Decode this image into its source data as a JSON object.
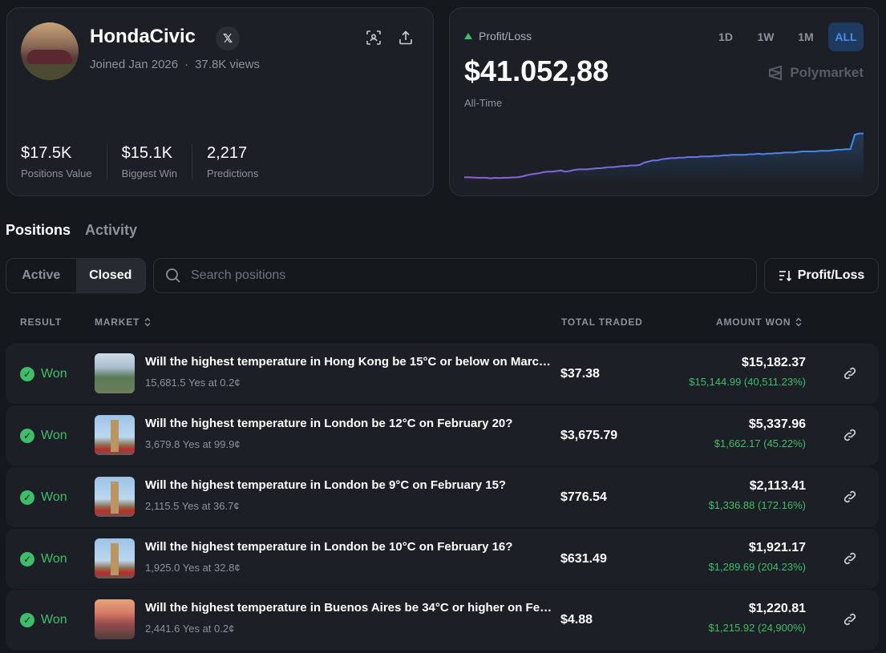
{
  "profile": {
    "username": "HondaCivic",
    "social_icon": "x-logo-icon",
    "joined": "Joined Jan 2026",
    "dot": "·",
    "views": "37.8K views",
    "stats": [
      {
        "value": "$17.5K",
        "label": "Positions Value"
      },
      {
        "value": "$15.1K",
        "label": "Biggest Win"
      },
      {
        "value": "2,217",
        "label": "Predictions"
      }
    ]
  },
  "pnl": {
    "label": "Profit/Loss",
    "value": "$41.052,88",
    "period": "All-Time",
    "ranges": [
      "1D",
      "1W",
      "1M",
      "ALL"
    ],
    "active_range": "ALL",
    "brand": "Polymarket",
    "series": [
      0.04,
      0.04,
      0.035,
      0.03,
      0.03,
      0.03,
      0.02,
      0.03,
      0.025,
      0.03,
      0.03,
      0.035,
      0.04,
      0.05,
      0.07,
      0.09,
      0.1,
      0.11,
      0.13,
      0.14,
      0.14,
      0.15,
      0.16,
      0.14,
      0.15,
      0.17,
      0.18,
      0.18,
      0.18,
      0.19,
      0.2,
      0.2,
      0.21,
      0.22,
      0.22,
      0.23,
      0.24,
      0.24,
      0.25,
      0.25,
      0.26,
      0.3,
      0.32,
      0.34,
      0.34,
      0.36,
      0.37,
      0.38,
      0.38,
      0.39,
      0.39,
      0.4,
      0.4,
      0.4,
      0.41,
      0.41,
      0.41,
      0.42,
      0.42,
      0.43,
      0.43,
      0.44,
      0.44,
      0.44,
      0.44,
      0.45,
      0.45,
      0.46,
      0.45,
      0.46,
      0.46,
      0.47,
      0.47,
      0.48,
      0.48,
      0.48,
      0.49,
      0.5,
      0.5,
      0.5,
      0.5,
      0.51,
      0.51,
      0.51,
      0.52,
      0.53,
      0.53,
      0.54,
      0.54,
      0.8,
      0.82,
      0.82
    ],
    "colors": {
      "start": "#9b59d6",
      "end": "#3d8cf0"
    }
  },
  "tabs": [
    "Positions",
    "Activity"
  ],
  "active_tab": "Positions",
  "filter": {
    "active_label": "Active",
    "closed_label": "Closed",
    "selected": "Closed"
  },
  "search": {
    "placeholder": "Search positions"
  },
  "sort": {
    "label": "Profit/Loss"
  },
  "table": {
    "headers": {
      "result": "RESULT",
      "market": "MARKET",
      "total_traded": "TOTAL TRADED",
      "amount_won": "AMOUNT WON"
    },
    "rows": [
      {
        "result": "Won",
        "thumb": "hong-kong-skyline",
        "title": "Will the highest temperature in Hong Kong be 15°C or below on March ...",
        "sub": "15,681.5 Yes at 0.2¢",
        "traded": "$37.38",
        "won": "$15,182.37",
        "profit": "$15,144.99 (40,511.23%)"
      },
      {
        "result": "Won",
        "thumb": "big-ben",
        "title": "Will the highest temperature in London be 12°C on February 20?",
        "sub": "3,679.8 Yes at 99.9¢",
        "traded": "$3,675.79",
        "won": "$5,337.96",
        "profit": "$1,662.17 (45.22%)"
      },
      {
        "result": "Won",
        "thumb": "big-ben",
        "title": "Will the highest temperature in London be 9°C on February 15?",
        "sub": "2,115.5 Yes at 36.7¢",
        "traded": "$776.54",
        "won": "$2,113.41",
        "profit": "$1,336.88 (172.16%)"
      },
      {
        "result": "Won",
        "thumb": "big-ben",
        "title": "Will the highest temperature in London be 10°C on February 16?",
        "sub": "1,925.0 Yes at 32.8¢",
        "traded": "$631.49",
        "won": "$1,921.17",
        "profit": "$1,289.69 (204.23%)"
      },
      {
        "result": "Won",
        "thumb": "buenos-aires",
        "title": "Will the highest temperature in Buenos Aires be 34°C or higher on Febr...",
        "sub": "2,441.6 Yes at 0.2¢",
        "traded": "$4.88",
        "won": "$1,220.81",
        "profit": "$1,215.92 (24,900%)"
      }
    ]
  }
}
